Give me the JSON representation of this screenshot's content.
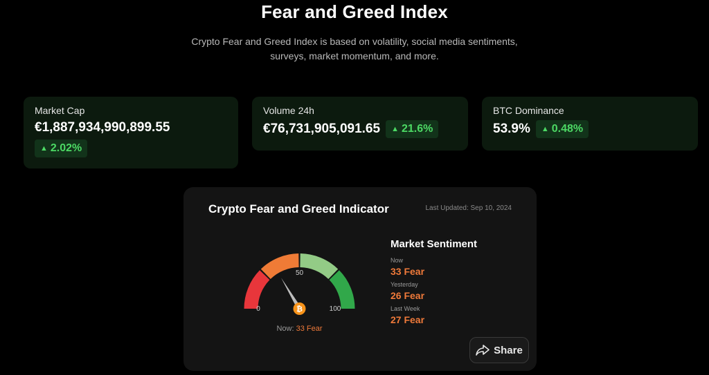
{
  "header": {
    "title": "Fear and Greed Index",
    "subtitle": "Crypto Fear and Greed Index is based on volatility, social media sentiments, surveys, market momentum, and more."
  },
  "stats": {
    "market_cap": {
      "label": "Market Cap",
      "value": "€1,887,934,990,899.55",
      "change": "2.02%"
    },
    "volume": {
      "label": "Volume 24h",
      "value": "€76,731,905,091.65",
      "change": "21.6%"
    },
    "btc_dominance": {
      "label": "BTC Dominance",
      "value": "53.9%",
      "change": "0.48%"
    }
  },
  "indicator": {
    "title": "Crypto Fear and Greed Indicator",
    "last_updated": "Last Updated: Sep 10, 2024",
    "gauge": {
      "value": 33,
      "min_label": "0",
      "mid_label": "50",
      "max_label": "100",
      "segment_colors": [
        "#e8363b",
        "#ef7b36",
        "#93cb86",
        "#31a84a"
      ]
    },
    "now_prefix": "Now:",
    "now_value": "33 Fear",
    "sentiment": {
      "title": "Market Sentiment",
      "rows": [
        {
          "label": "Now",
          "value": "33 Fear"
        },
        {
          "label": "Yesterday",
          "value": "26 Fear"
        },
        {
          "label": "Last Week",
          "value": "27 Fear"
        }
      ]
    },
    "share_label": "Share"
  },
  "colors": {
    "accent_green": "#4cd964",
    "fear_orange": "#f07a3a",
    "card_bg": "#0c1a0e"
  }
}
